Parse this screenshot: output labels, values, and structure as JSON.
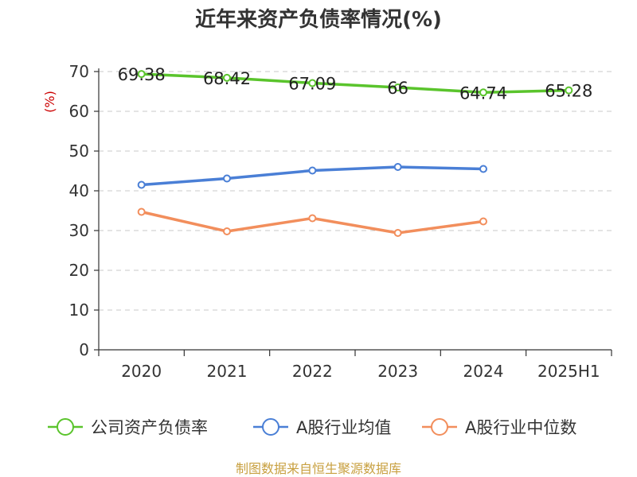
{
  "chart_data": {
    "type": "line",
    "title": "近年来资产负债率情况(%)",
    "ylabel": "(%)",
    "xlabel": "",
    "categories": [
      "2020",
      "2021",
      "2022",
      "2023",
      "2024",
      "2025H1"
    ],
    "ylim": [
      0,
      70
    ],
    "yticks": [
      0,
      10,
      20,
      30,
      40,
      50,
      60,
      70
    ],
    "grid": true,
    "legend_position": "bottom",
    "series": [
      {
        "name": "公司资产负债率",
        "color": "#5ac42c",
        "values": [
          69.38,
          68.42,
          67.09,
          66,
          64.74,
          65.28
        ],
        "labels": [
          "69.38",
          "68.42",
          "67.09",
          "66",
          "64.74",
          "65.28"
        ]
      },
      {
        "name": "A股行业均值",
        "color": "#4a7fd6",
        "values": [
          41.5,
          43.1,
          45.1,
          46.0,
          45.5,
          null
        ],
        "labels": []
      },
      {
        "name": "A股行业中位数",
        "color": "#f28e5c",
        "values": [
          34.7,
          29.8,
          33.1,
          29.4,
          32.3,
          null
        ],
        "labels": []
      }
    ]
  },
  "source": "制图数据来自恒生聚源数据库"
}
